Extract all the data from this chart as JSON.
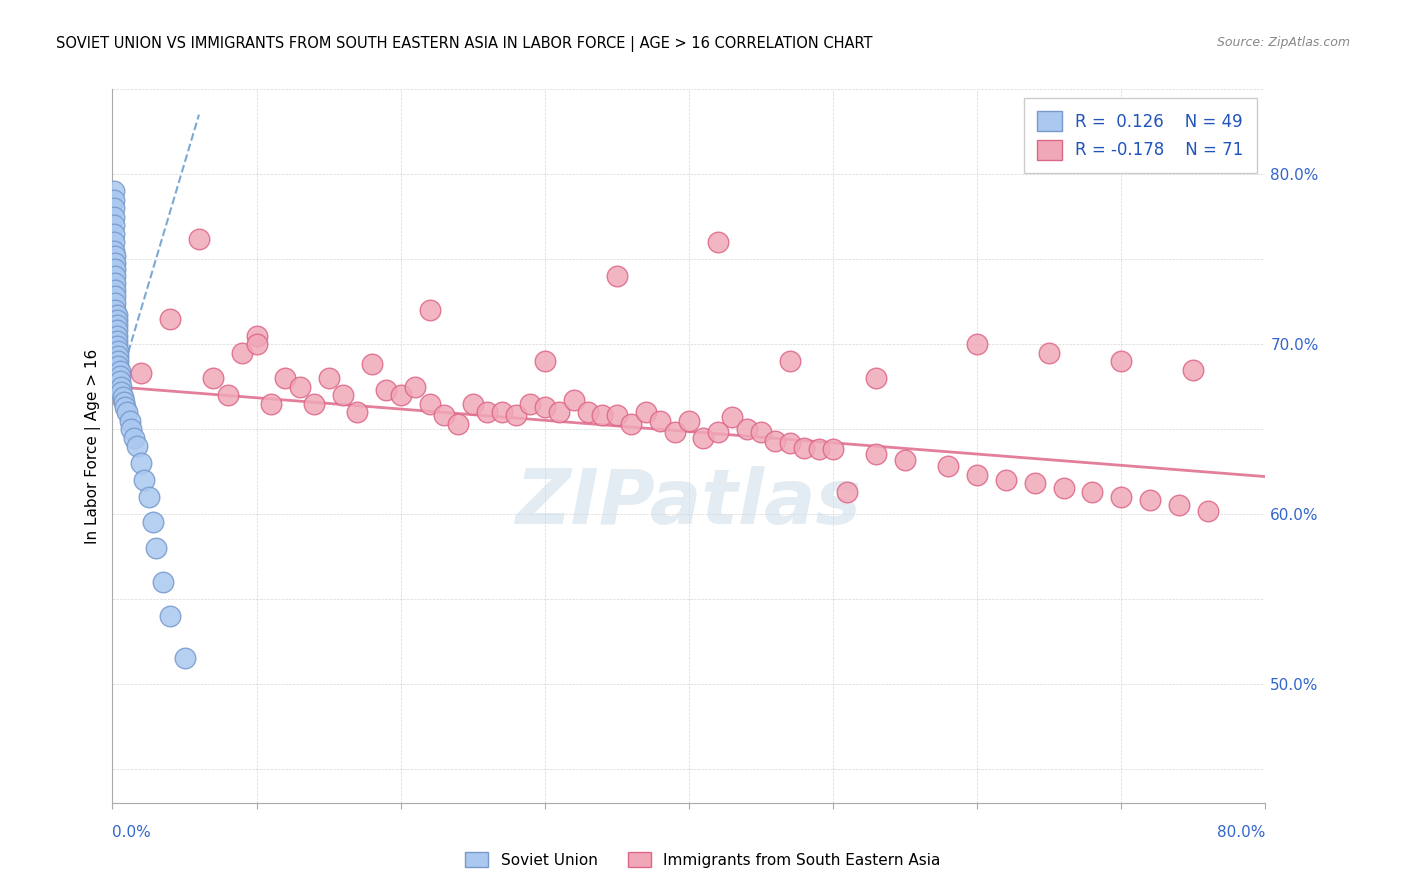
{
  "title": "SOVIET UNION VS IMMIGRANTS FROM SOUTH EASTERN ASIA IN LABOR FORCE | AGE > 16 CORRELATION CHART",
  "source": "Source: ZipAtlas.com",
  "ylabel": "In Labor Force | Age > 16",
  "legend_blue_R": "R =  0.126",
  "legend_blue_N": "N = 49",
  "legend_pink_R": "R = -0.178",
  "legend_pink_N": "N = 71",
  "blue_color": "#aac8f0",
  "blue_edge_color": "#7799cc",
  "pink_color": "#f0a8b8",
  "pink_edge_color": "#dd6688",
  "trend_blue_color": "#6699cc",
  "trend_pink_color": "#e07090",
  "right_ytick_vals": [
    0.5,
    0.6,
    0.7,
    0.8
  ],
  "xlim": [
    0.0,
    0.8
  ],
  "ylim": [
    0.43,
    0.85
  ],
  "blue_x": [
    0.001,
    0.001,
    0.001,
    0.001,
    0.001,
    0.001,
    0.001,
    0.001,
    0.002,
    0.002,
    0.002,
    0.002,
    0.002,
    0.002,
    0.002,
    0.002,
    0.002,
    0.003,
    0.003,
    0.003,
    0.003,
    0.003,
    0.003,
    0.003,
    0.004,
    0.004,
    0.004,
    0.004,
    0.005,
    0.005,
    0.005,
    0.006,
    0.006,
    0.007,
    0.008,
    0.009,
    0.01,
    0.012,
    0.013,
    0.015,
    0.017,
    0.02,
    0.022,
    0.025,
    0.028,
    0.03,
    0.035,
    0.04,
    0.05
  ],
  "blue_y": [
    0.79,
    0.785,
    0.78,
    0.775,
    0.77,
    0.765,
    0.76,
    0.755,
    0.752,
    0.748,
    0.744,
    0.74,
    0.736,
    0.732,
    0.728,
    0.724,
    0.72,
    0.717,
    0.714,
    0.711,
    0.708,
    0.705,
    0.702,
    0.699,
    0.696,
    0.693,
    0.69,
    0.687,
    0.684,
    0.681,
    0.678,
    0.675,
    0.672,
    0.669,
    0.666,
    0.663,
    0.66,
    0.655,
    0.65,
    0.645,
    0.64,
    0.63,
    0.62,
    0.61,
    0.595,
    0.58,
    0.56,
    0.54,
    0.515
  ],
  "pink_x": [
    0.02,
    0.04,
    0.06,
    0.07,
    0.08,
    0.09,
    0.1,
    0.11,
    0.12,
    0.13,
    0.14,
    0.15,
    0.16,
    0.17,
    0.18,
    0.19,
    0.2,
    0.21,
    0.22,
    0.23,
    0.24,
    0.25,
    0.26,
    0.27,
    0.28,
    0.29,
    0.3,
    0.31,
    0.32,
    0.33,
    0.34,
    0.35,
    0.36,
    0.37,
    0.38,
    0.39,
    0.4,
    0.41,
    0.42,
    0.43,
    0.44,
    0.45,
    0.46,
    0.47,
    0.48,
    0.49,
    0.5,
    0.51,
    0.53,
    0.55,
    0.58,
    0.6,
    0.62,
    0.64,
    0.66,
    0.68,
    0.7,
    0.72,
    0.74,
    0.76,
    0.1,
    0.22,
    0.3,
    0.35,
    0.42,
    0.47,
    0.53,
    0.6,
    0.65,
    0.7,
    0.75
  ],
  "pink_y": [
    0.683,
    0.715,
    0.762,
    0.68,
    0.67,
    0.695,
    0.705,
    0.665,
    0.68,
    0.675,
    0.665,
    0.68,
    0.67,
    0.66,
    0.688,
    0.673,
    0.67,
    0.675,
    0.665,
    0.658,
    0.653,
    0.665,
    0.66,
    0.66,
    0.658,
    0.665,
    0.663,
    0.66,
    0.667,
    0.66,
    0.658,
    0.658,
    0.653,
    0.66,
    0.655,
    0.648,
    0.655,
    0.645,
    0.648,
    0.657,
    0.65,
    0.648,
    0.643,
    0.642,
    0.639,
    0.638,
    0.638,
    0.613,
    0.635,
    0.632,
    0.628,
    0.623,
    0.62,
    0.618,
    0.615,
    0.613,
    0.61,
    0.608,
    0.605,
    0.602,
    0.7,
    0.72,
    0.69,
    0.74,
    0.76,
    0.69,
    0.68,
    0.7,
    0.695,
    0.69,
    0.685
  ],
  "blue_trend_x": [
    0.0,
    0.06
  ],
  "blue_trend_y": [
    0.664,
    0.835
  ],
  "pink_trend_x": [
    0.0,
    0.8
  ],
  "pink_trend_y": [
    0.675,
    0.622
  ]
}
